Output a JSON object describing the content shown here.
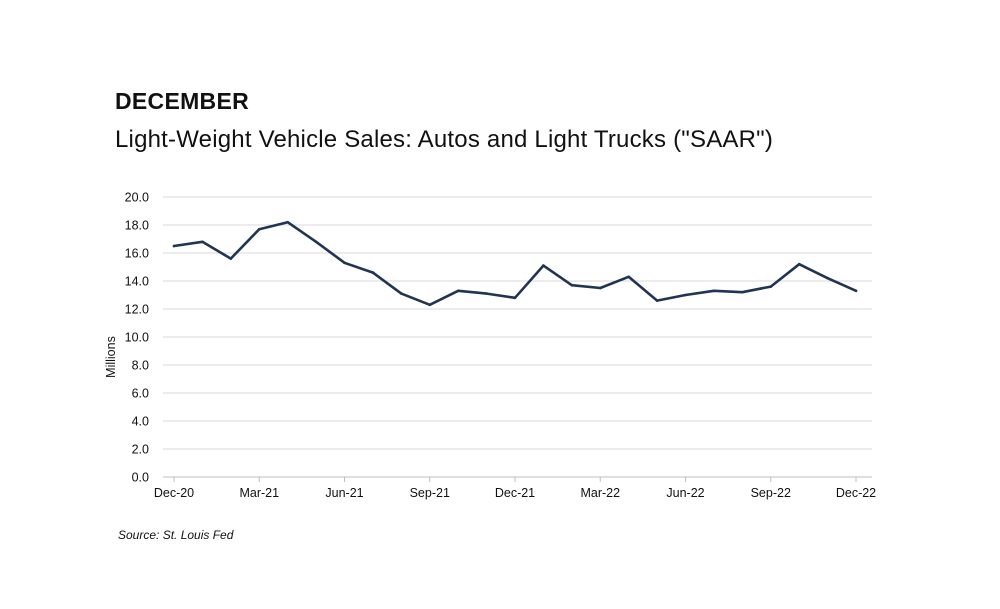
{
  "header": {
    "heading": "DECEMBER",
    "title": "Light-Weight Vehicle Sales: Autos and Light Trucks (\"SAAR\")"
  },
  "footer": {
    "source": "Source: St. Louis Fed"
  },
  "colors": {
    "line": "#1f3552",
    "grid": "#d9d9d9",
    "axis": "#bfbfbf"
  },
  "chart_data": {
    "type": "line",
    "title": "Light-Weight Vehicle Sales: Autos and Light Trucks (\"SAAR\")",
    "xlabel": "",
    "ylabel": "Millions",
    "ylim": [
      0,
      20
    ],
    "y_ticks": [
      "0.0",
      "2.0",
      "4.0",
      "6.0",
      "8.0",
      "10.0",
      "12.0",
      "14.0",
      "16.0",
      "18.0",
      "20.0"
    ],
    "x_tick_labels": [
      "Dec-20",
      "Mar-21",
      "Jun-21",
      "Sep-21",
      "Dec-21",
      "Mar-22",
      "Jun-22",
      "Sep-22",
      "Dec-22"
    ],
    "grid": true,
    "legend": "none",
    "x": [
      "Dec-20",
      "Jan-21",
      "Feb-21",
      "Mar-21",
      "Apr-21",
      "May-21",
      "Jun-21",
      "Jul-21",
      "Aug-21",
      "Sep-21",
      "Oct-21",
      "Nov-21",
      "Dec-21",
      "Jan-22",
      "Feb-22",
      "Mar-22",
      "Apr-22",
      "May-22",
      "Jun-22",
      "Jul-22",
      "Aug-22",
      "Sep-22",
      "Oct-22",
      "Nov-22",
      "Dec-22"
    ],
    "series": [
      {
        "values": [
          16.5,
          16.8,
          15.6,
          17.7,
          18.2,
          16.8,
          15.3,
          14.6,
          13.1,
          12.3,
          13.3,
          13.1,
          12.8,
          15.1,
          13.7,
          13.5,
          14.3,
          12.6,
          13.0,
          13.3,
          13.2,
          13.6,
          15.2,
          14.2,
          13.3
        ]
      }
    ]
  }
}
